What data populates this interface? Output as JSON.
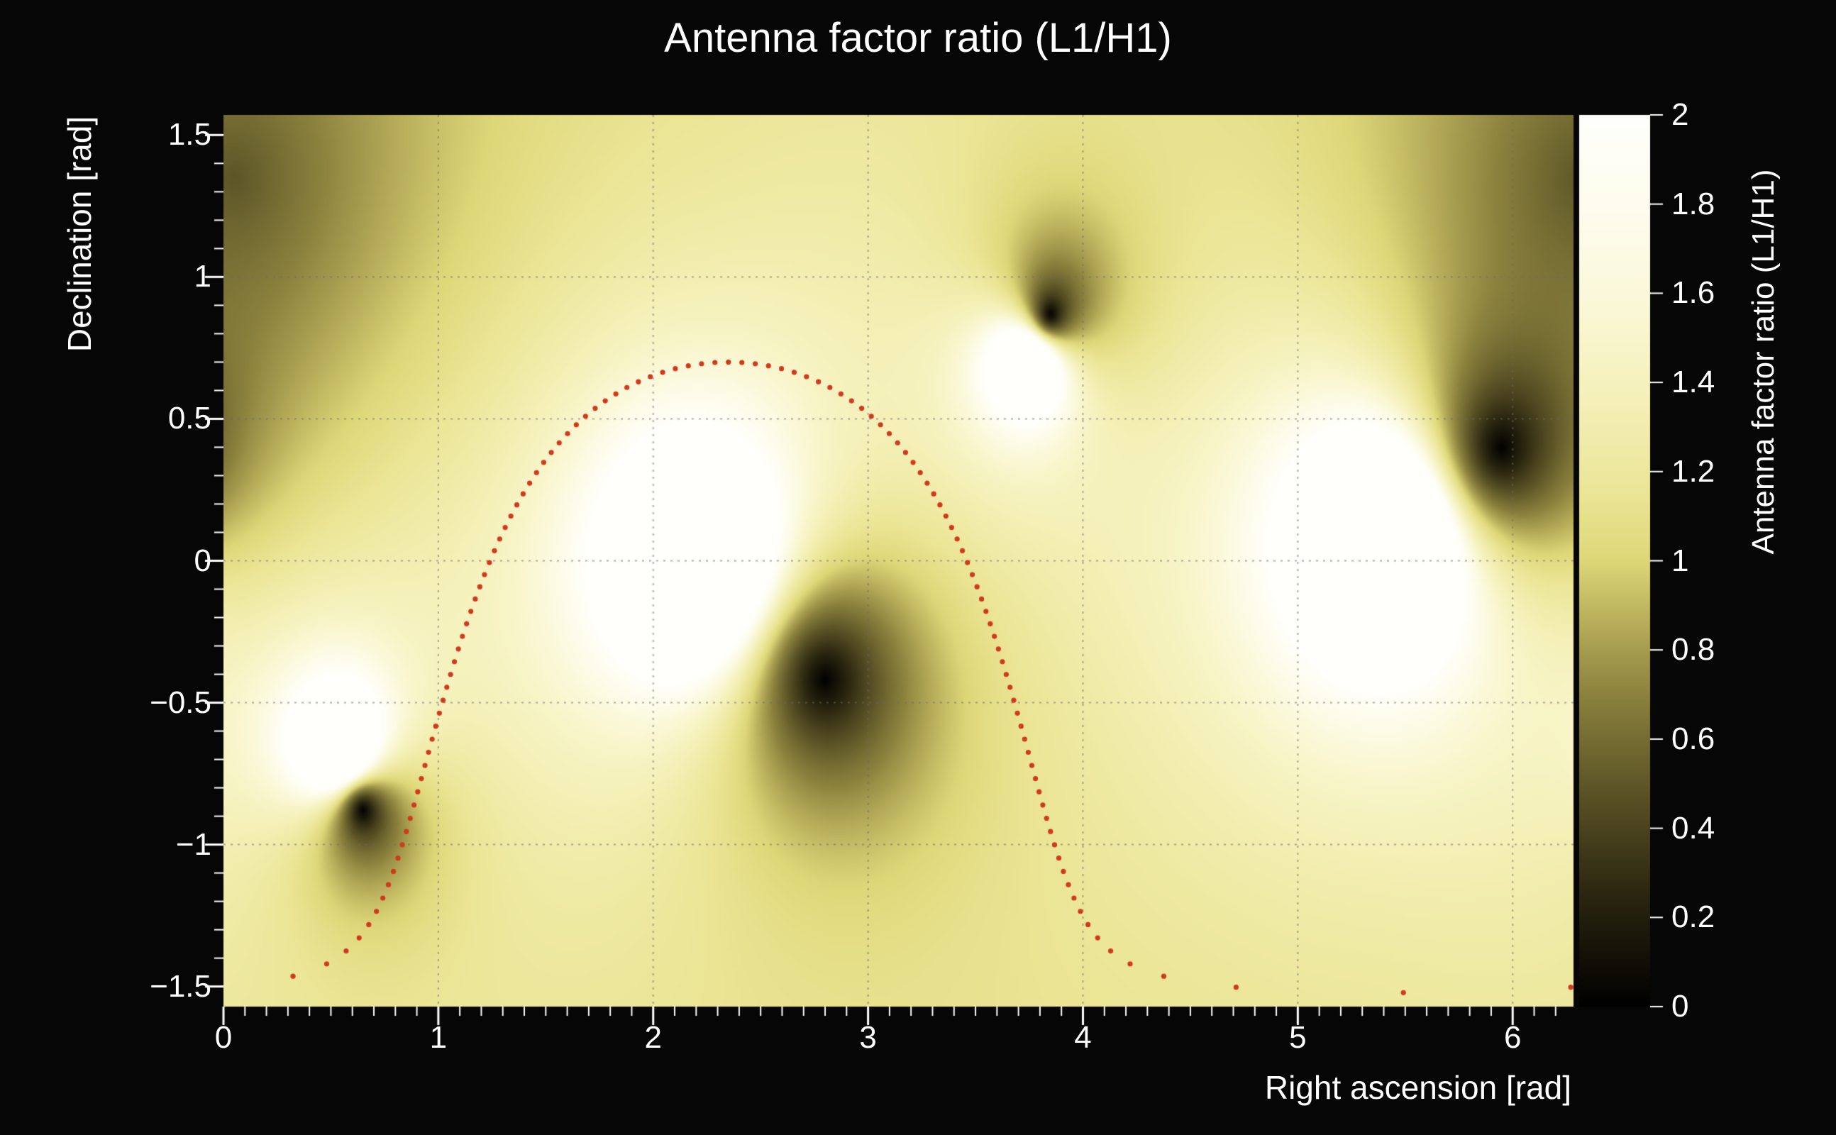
{
  "page": {
    "background": "#060606",
    "text_color": "#ffffff"
  },
  "chart": {
    "title": "Antenna factor ratio (L1/H1)",
    "xlabel": "Right ascension [rad]",
    "ylabel": "Declination [rad]",
    "colorbar_label": "Antenna factor ratio (L1/H1)"
  },
  "chart_data": {
    "type": "heatmap",
    "title": "Antenna factor ratio (L1/H1)",
    "xlabel": "Right ascension [rad]",
    "ylabel": "Declination [rad]",
    "zlabel": "Antenna factor ratio (L1/H1)",
    "x_range": [
      0,
      6.2832
    ],
    "y_range": [
      -1.5708,
      1.5708
    ],
    "z_range": [
      0,
      2
    ],
    "grid": true,
    "grid_color": "#6a6a6a",
    "x_ticks": [
      {
        "value": 0,
        "label": "0"
      },
      {
        "value": 1,
        "label": "1"
      },
      {
        "value": 2,
        "label": "2"
      },
      {
        "value": 3,
        "label": "3"
      },
      {
        "value": 4,
        "label": "4"
      },
      {
        "value": 5,
        "label": "5"
      },
      {
        "value": 6,
        "label": "6"
      }
    ],
    "y_ticks": [
      {
        "value": 1.5,
        "label": "1.5"
      },
      {
        "value": 1.0,
        "label": "1"
      },
      {
        "value": 0.5,
        "label": "0.5"
      },
      {
        "value": 0.0,
        "label": "0"
      },
      {
        "value": -0.5,
        "label": "−0.5"
      },
      {
        "value": -1.0,
        "label": "−1"
      },
      {
        "value": -1.5,
        "label": "−1.5"
      }
    ],
    "z_ticks": [
      {
        "value": 0.0,
        "label": "0"
      },
      {
        "value": 0.2,
        "label": "0.2"
      },
      {
        "value": 0.4,
        "label": "0.4"
      },
      {
        "value": 0.6,
        "label": "0.6"
      },
      {
        "value": 0.8,
        "label": "0.8"
      },
      {
        "value": 1.0,
        "label": "1"
      },
      {
        "value": 1.2,
        "label": "1.2"
      },
      {
        "value": 1.4,
        "label": "1.4"
      },
      {
        "value": 1.6,
        "label": "1.6"
      },
      {
        "value": 1.8,
        "label": "1.8"
      },
      {
        "value": 2.0,
        "label": "2"
      }
    ],
    "x_minor_step": 0.1,
    "y_minor_step": 0.1,
    "colormap": [
      {
        "t": 0.0,
        "rgb": [
          0,
          0,
          0
        ]
      },
      {
        "t": 0.25,
        "rgb": [
          43,
          38,
          16
        ]
      },
      {
        "t": 0.5,
        "rgb": [
          95,
          87,
          40
        ]
      },
      {
        "t": 0.7,
        "rgb": [
          140,
          130,
          62
        ]
      },
      {
        "t": 0.85,
        "rgb": [
          180,
          170,
          88
        ]
      },
      {
        "t": 1.0,
        "rgb": [
          222,
          215,
          120
        ]
      },
      {
        "t": 1.15,
        "rgb": [
          235,
          229,
          150
        ]
      },
      {
        "t": 1.35,
        "rgb": [
          244,
          240,
          183
        ]
      },
      {
        "t": 1.55,
        "rgb": [
          250,
          247,
          212
        ]
      },
      {
        "t": 1.75,
        "rgb": [
          253,
          252,
          235
        ]
      },
      {
        "t": 2.0,
        "rgb": [
          255,
          255,
          252
        ]
      }
    ],
    "field": {
      "base": 1.0,
      "dark_nulls": [
        {
          "ra": 0.65,
          "dec": -0.88,
          "width": 0.5,
          "floor": 0
        },
        {
          "ra": 2.8,
          "dec": -0.42,
          "width": 0.7,
          "floor": 0
        },
        {
          "ra": 3.85,
          "dec": 0.87,
          "width": 0.55,
          "floor": 0
        },
        {
          "ra": 5.95,
          "dec": 0.4,
          "width": 0.6,
          "floor": 0
        },
        {
          "ra": 0.05,
          "dec": 1.35,
          "width": 1.3,
          "floor": 0.42
        }
      ],
      "bright_nulls": [
        {
          "ra": 0.55,
          "dec": -0.68,
          "strength": 0.12,
          "core": 0.012
        },
        {
          "ra": 2.22,
          "dec": -0.02,
          "strength": 0.3,
          "core": 0.03
        },
        {
          "ra": 3.76,
          "dec": 0.72,
          "strength": 0.12,
          "core": 0.012
        },
        {
          "ra": 5.42,
          "dec": 0.08,
          "strength": 0.33,
          "core": 0.03
        }
      ]
    },
    "overlay_curve": {
      "type": "sky_circle",
      "style": "dotted",
      "color": "#cf3a1d",
      "center_ra": 2.35,
      "center_dec": -0.46,
      "radius_rad": 1.16,
      "n_dots": 120,
      "dot_radius_px": 3.6,
      "max_dec": 0.7,
      "min_dec": -1.53
    }
  }
}
